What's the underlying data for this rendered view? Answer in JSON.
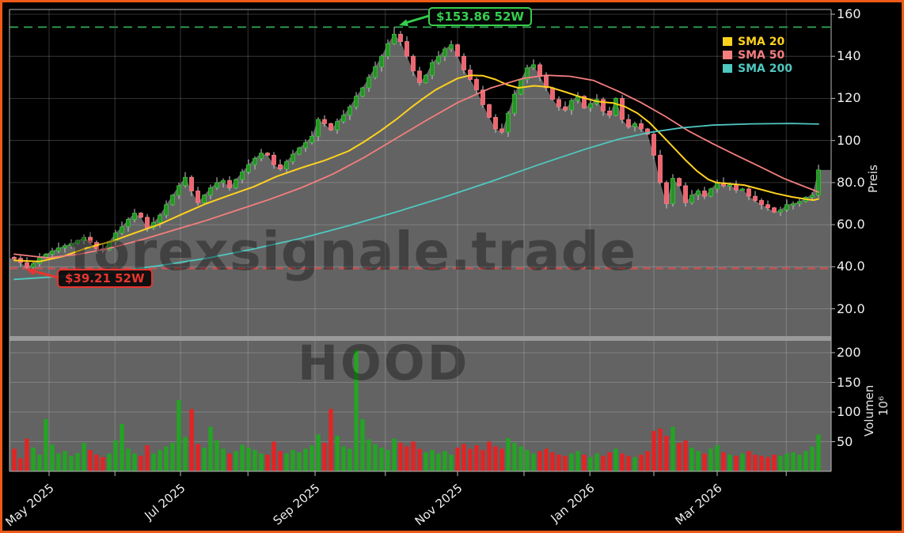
{
  "watermark": {
    "line1": "forexsignale.trade",
    "line2": "HOOD"
  },
  "legend": {
    "items": [
      {
        "label": "SMA 20",
        "color": "#ffd21e"
      },
      {
        "label": "SMA 50",
        "color": "#f57e7e"
      },
      {
        "label": "SMA 200",
        "color": "#4fc8c0"
      }
    ]
  },
  "annotations": {
    "high": {
      "label": "$153.86 52W",
      "value": 153.86,
      "color": "#35cf4e",
      "line_color": "#2f9e4f"
    },
    "low": {
      "label": "$39.21 52W",
      "value": 39.21,
      "color": "#e8352e",
      "line_color": "#d05050"
    }
  },
  "frame_color": "#ee5a17",
  "axes": {
    "price": {
      "title": "Preis",
      "ticks": [
        "160",
        "140",
        "120",
        "100",
        "80.0",
        "60.0",
        "40.0",
        "20.0"
      ],
      "tick_values": [
        160,
        140,
        120,
        100,
        80,
        60,
        40,
        20
      ],
      "range": [
        7,
        162.5
      ]
    },
    "volume": {
      "title": "Volumen",
      "exp_label": "10⁶",
      "ticks": [
        "200",
        "150",
        "100",
        "50"
      ],
      "tick_values": [
        200,
        150,
        100,
        50
      ],
      "range": [
        0,
        220
      ]
    },
    "x": {
      "labels": [
        "May 2025",
        "Jul 2025",
        "Sep 2025",
        "Nov 2025",
        "Jan 2026",
        "Mar 2026"
      ],
      "major_i": [
        5.5,
        26.25,
        47.5,
        70,
        90.9,
        111
      ],
      "minor_i": [
        15.9,
        36.9,
        58.6,
        80.5,
        101,
        121.9
      ]
    }
  },
  "chart_data": {
    "type": "candlestick",
    "grid": true,
    "fill_color": "#636363",
    "up_color": "#279327",
    "up_edge": "#3fbf3f",
    "down_color": "#ef6570",
    "down_edge": "#f58089",
    "wick_color": "#c9c9c9",
    "vol_up_color": "#24a424",
    "vol_down_color": "#e32424",
    "open0": 44.5,
    "high_52w": 153.86,
    "low_52w": 39.21,
    "closes": [
      44,
      42,
      39.8,
      41.5,
      44.5,
      46,
      47.5,
      49,
      50,
      51,
      52.5,
      54,
      51.5,
      48.5,
      48,
      52,
      56,
      59,
      62.5,
      65.5,
      63.5,
      58.5,
      61,
      64.5,
      69.5,
      74,
      78.5,
      82.5,
      76,
      70.5,
      74,
      77.5,
      80,
      81,
      77.5,
      81.5,
      85,
      88.5,
      91.5,
      94,
      93,
      88.5,
      86.5,
      90,
      93.5,
      96.5,
      99,
      102,
      110,
      108,
      105,
      109,
      112,
      116,
      121,
      125,
      130,
      135,
      140,
      146,
      150.5,
      147,
      140,
      133,
      127.5,
      131,
      137,
      140,
      143.5,
      145.5,
      140,
      133.5,
      129,
      124,
      117,
      111,
      105.5,
      104,
      113,
      122,
      129,
      134.5,
      136,
      130.5,
      125,
      119.5,
      116,
      114.5,
      119,
      121,
      115.5,
      117.5,
      119.5,
      114,
      112,
      120,
      110,
      106.5,
      108,
      105.5,
      103,
      93,
      80,
      70,
      82,
      78.5,
      70.5,
      74,
      76,
      73.5,
      77,
      80,
      78.5,
      79,
      76.5,
      77,
      73.5,
      71.5,
      69.5,
      68,
      66,
      67,
      69.5,
      70,
      71,
      73,
      74,
      86
    ],
    "volumes": [
      38,
      22,
      55,
      40,
      28,
      88,
      45,
      30,
      34,
      26,
      31,
      48,
      36,
      28,
      24,
      30,
      52,
      80,
      38,
      30,
      26,
      44,
      30,
      36,
      42,
      48,
      120,
      58,
      105,
      46,
      40,
      75,
      52,
      38,
      30,
      34,
      45,
      40,
      36,
      30,
      28,
      50,
      34,
      30,
      36,
      32,
      38,
      44,
      62,
      48,
      105,
      60,
      42,
      38,
      205,
      88,
      54,
      46,
      40,
      36,
      55,
      48,
      42,
      50,
      38,
      32,
      36,
      30,
      34,
      28,
      40,
      46,
      38,
      44,
      36,
      50,
      42,
      38,
      56,
      48,
      42,
      36,
      30,
      34,
      38,
      32,
      28,
      26,
      30,
      34,
      28,
      24,
      30,
      26,
      32,
      38,
      30,
      26,
      24,
      28,
      34,
      68,
      72,
      60,
      75,
      48,
      52,
      40,
      34,
      30,
      38,
      44,
      32,
      28,
      26,
      30,
      34,
      28,
      26,
      24,
      28,
      26,
      30,
      32,
      28,
      34,
      42,
      62
    ],
    "smas": [
      {
        "name": "SMA 20",
        "color": "#ffd21e",
        "width": 2.0,
        "points": [
          [
            0,
            43
          ],
          [
            4,
            42.5
          ],
          [
            7.8,
            45
          ],
          [
            11.5,
            49
          ],
          [
            15.3,
            52
          ],
          [
            19,
            56
          ],
          [
            22.8,
            60
          ],
          [
            26.5,
            65
          ],
          [
            30.3,
            70
          ],
          [
            34,
            74
          ],
          [
            37.8,
            78
          ],
          [
            41.5,
            83
          ],
          [
            45.3,
            87
          ],
          [
            49,
            90.5
          ],
          [
            52.8,
            95
          ],
          [
            55.3,
            99.5
          ],
          [
            57.8,
            104.5
          ],
          [
            60.3,
            110
          ],
          [
            62.8,
            116
          ],
          [
            64.6,
            120
          ],
          [
            66.5,
            124
          ],
          [
            68.4,
            127
          ],
          [
            70,
            129.5
          ],
          [
            72,
            131
          ],
          [
            74,
            130.8
          ],
          [
            76,
            129
          ],
          [
            77.8,
            126.5
          ],
          [
            79.6,
            125
          ],
          [
            82.1,
            126
          ],
          [
            84.6,
            125.3
          ],
          [
            87.1,
            123
          ],
          [
            89.6,
            120.5
          ],
          [
            92.1,
            118.5
          ],
          [
            94.6,
            117.8
          ],
          [
            96.5,
            116
          ],
          [
            98.4,
            113
          ],
          [
            100.3,
            108.5
          ],
          [
            102.1,
            103
          ],
          [
            104,
            97
          ],
          [
            105.9,
            91
          ],
          [
            107.8,
            85.5
          ],
          [
            109.6,
            81.5
          ],
          [
            110.9,
            80
          ],
          [
            113.4,
            79.3
          ],
          [
            115.3,
            78.8
          ],
          [
            117.8,
            76.8
          ],
          [
            120.3,
            74.8
          ],
          [
            122.8,
            73.2
          ],
          [
            125.3,
            72
          ],
          [
            126.3,
            71.7
          ],
          [
            127,
            72.3
          ]
        ]
      },
      {
        "name": "SMA 50",
        "color": "#f57e7e",
        "width": 1.8,
        "points": [
          [
            0,
            46
          ],
          [
            5.3,
            44.2
          ],
          [
            10.3,
            46
          ],
          [
            15.3,
            49
          ],
          [
            20.3,
            53
          ],
          [
            25.3,
            57.5
          ],
          [
            30.3,
            62
          ],
          [
            35.3,
            67
          ],
          [
            40.3,
            72
          ],
          [
            45.3,
            77.5
          ],
          [
            50.3,
            84
          ],
          [
            55.3,
            92
          ],
          [
            60.3,
            101
          ],
          [
            65.3,
            110
          ],
          [
            70,
            118
          ],
          [
            75.3,
            125
          ],
          [
            80.3,
            129.5
          ],
          [
            84,
            131
          ],
          [
            87.8,
            130.5
          ],
          [
            91.5,
            128.5
          ],
          [
            95.3,
            123.5
          ],
          [
            99,
            118
          ],
          [
            102.8,
            111.5
          ],
          [
            106.5,
            104.5
          ],
          [
            110.3,
            98.5
          ],
          [
            114,
            93
          ],
          [
            117.8,
            87.5
          ],
          [
            121.5,
            82
          ],
          [
            124,
            79
          ],
          [
            125.9,
            76.8
          ],
          [
            127,
            75.5
          ]
        ]
      },
      {
        "name": "SMA 200",
        "color": "#4fc8c0",
        "width": 1.8,
        "points": [
          [
            0,
            34
          ],
          [
            7.8,
            35.5
          ],
          [
            15.3,
            37.5
          ],
          [
            22.8,
            40.5
          ],
          [
            30.3,
            44
          ],
          [
            37.8,
            48.5
          ],
          [
            45.3,
            53.5
          ],
          [
            52.8,
            59.5
          ],
          [
            60.3,
            66
          ],
          [
            67.8,
            73
          ],
          [
            75.3,
            80.5
          ],
          [
            82.8,
            88.5
          ],
          [
            90.3,
            96
          ],
          [
            95.3,
            100.5
          ],
          [
            100.3,
            103.8
          ],
          [
            105.3,
            106
          ],
          [
            110.3,
            107.3
          ],
          [
            116.5,
            107.9
          ],
          [
            122.8,
            108.1
          ],
          [
            127,
            107.8
          ]
        ]
      }
    ]
  }
}
